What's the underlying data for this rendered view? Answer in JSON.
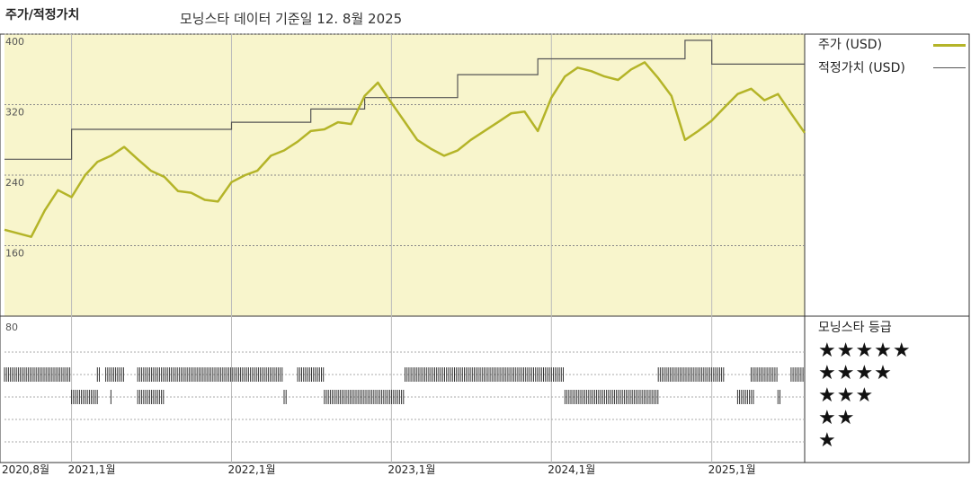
{
  "header": {
    "left_title": "주가/적정가치",
    "center_title": "모닝스타 데이터 기준일 12. 8월 2025"
  },
  "legend": {
    "price_label": "주가 (USD)",
    "fair_value_label": "적정가치 (USD)"
  },
  "colors": {
    "price": "#b4b428",
    "fair_value": "#555555",
    "panel_bg": "#f8f5cc",
    "rating_bar": "#333333"
  },
  "rating_panel": {
    "title": "모닝스타 등급",
    "star_rows": [
      "★★★★★",
      "★★★★",
      "★★★",
      "★★",
      "★"
    ],
    "lower_axis_label": "80"
  },
  "chart_data": {
    "type": "line",
    "x_axis": {
      "start": "2020-08",
      "end": "2025-08",
      "tick_labels": [
        "2020,8월",
        "2021,1월",
        "2022,1월",
        "2023,1월",
        "2024,1월",
        "2025,1월"
      ],
      "tick_dates": [
        "2020-08",
        "2021-01",
        "2022-01",
        "2023-01",
        "2024-01",
        "2025-01"
      ]
    },
    "y_axis": {
      "ylim": [
        80,
        400
      ],
      "tick_labels": [
        "400",
        "320",
        "240",
        "160"
      ],
      "tick_values": [
        400,
        320,
        240,
        160
      ]
    },
    "series": [
      {
        "name": "주가 (USD)",
        "points": [
          [
            "2020-08-01",
            178
          ],
          [
            "2020-09-01",
            174
          ],
          [
            "2020-10-01",
            170
          ],
          [
            "2020-11-01",
            200
          ],
          [
            "2020-12-01",
            223
          ],
          [
            "2021-01-01",
            215
          ],
          [
            "2021-02-01",
            240
          ],
          [
            "2021-03-01",
            255
          ],
          [
            "2021-04-01",
            262
          ],
          [
            "2021-05-01",
            272
          ],
          [
            "2021-06-01",
            258
          ],
          [
            "2021-07-01",
            245
          ],
          [
            "2021-08-01",
            238
          ],
          [
            "2021-09-01",
            222
          ],
          [
            "2021-10-01",
            220
          ],
          [
            "2021-11-01",
            212
          ],
          [
            "2021-12-01",
            210
          ],
          [
            "2022-01-01",
            232
          ],
          [
            "2022-02-01",
            240
          ],
          [
            "2022-03-01",
            245
          ],
          [
            "2022-04-01",
            262
          ],
          [
            "2022-05-01",
            268
          ],
          [
            "2022-06-01",
            278
          ],
          [
            "2022-07-01",
            290
          ],
          [
            "2022-08-01",
            292
          ],
          [
            "2022-09-01",
            300
          ],
          [
            "2022-10-01",
            298
          ],
          [
            "2022-11-01",
            330
          ],
          [
            "2022-12-01",
            345
          ],
          [
            "2023-01-01",
            322
          ],
          [
            "2023-02-01",
            300
          ],
          [
            "2023-03-01",
            280
          ],
          [
            "2023-04-01",
            270
          ],
          [
            "2023-05-01",
            262
          ],
          [
            "2023-06-01",
            268
          ],
          [
            "2023-07-01",
            280
          ],
          [
            "2023-08-01",
            290
          ],
          [
            "2023-09-01",
            300
          ],
          [
            "2023-10-01",
            310
          ],
          [
            "2023-11-01",
            312
          ],
          [
            "2023-12-01",
            290
          ],
          [
            "2024-01-01",
            328
          ],
          [
            "2024-02-01",
            352
          ],
          [
            "2024-03-01",
            362
          ],
          [
            "2024-04-01",
            358
          ],
          [
            "2024-05-01",
            352
          ],
          [
            "2024-06-01",
            348
          ],
          [
            "2024-07-01",
            360
          ],
          [
            "2024-08-01",
            368
          ],
          [
            "2024-09-01",
            350
          ],
          [
            "2024-10-01",
            330
          ],
          [
            "2024-11-01",
            280
          ],
          [
            "2024-12-01",
            290
          ],
          [
            "2025-01-01",
            302
          ],
          [
            "2025-02-01",
            318
          ],
          [
            "2025-03-01",
            332
          ],
          [
            "2025-04-01",
            338
          ],
          [
            "2025-05-01",
            325
          ],
          [
            "2025-06-01",
            332
          ],
          [
            "2025-07-01",
            310
          ],
          [
            "2025-08-01",
            288
          ]
        ]
      },
      {
        "name": "적정가치 (USD)",
        "points": [
          [
            "2020-08-01",
            258
          ],
          [
            "2021-01-01",
            258
          ],
          [
            "2021-01-01",
            292
          ],
          [
            "2022-01-01",
            292
          ],
          [
            "2022-01-01",
            300
          ],
          [
            "2022-07-01",
            300
          ],
          [
            "2022-07-01",
            315
          ],
          [
            "2022-11-01",
            315
          ],
          [
            "2022-11-01",
            328
          ],
          [
            "2023-06-01",
            328
          ],
          [
            "2023-06-01",
            354
          ],
          [
            "2023-12-01",
            354
          ],
          [
            "2023-12-01",
            372
          ],
          [
            "2024-11-01",
            372
          ],
          [
            "2024-11-01",
            393
          ],
          [
            "2025-01-01",
            393
          ],
          [
            "2025-01-01",
            366
          ],
          [
            "2025-08-01",
            366
          ]
        ]
      }
    ],
    "rating_history": {
      "rows": [
        {
          "stars": 4,
          "periods": [
            [
              "2020-08-01",
              "2021-01-01"
            ],
            [
              "2021-03-01",
              "2021-03-10"
            ],
            [
              "2021-03-20",
              "2021-05-01"
            ],
            [
              "2021-06-01",
              "2022-05-01"
            ],
            [
              "2022-06-01",
              "2022-08-01"
            ],
            [
              "2023-02-01",
              "2024-02-01"
            ],
            [
              "2024-09-01",
              "2025-02-01"
            ],
            [
              "2025-04-01",
              "2025-06-01"
            ],
            [
              "2025-07-01",
              "2025-08-01"
            ]
          ]
        },
        {
          "stars": 3,
          "periods": [
            [
              "2021-01-01",
              "2021-03-01"
            ],
            [
              "2021-04-01",
              "2021-04-05"
            ],
            [
              "2021-06-01",
              "2021-08-01"
            ],
            [
              "2022-05-01",
              "2022-05-10"
            ],
            [
              "2022-08-01",
              "2023-02-01"
            ],
            [
              "2024-02-01",
              "2024-09-01"
            ],
            [
              "2025-03-01",
              "2025-04-10"
            ],
            [
              "2025-06-01",
              "2025-06-10"
            ]
          ]
        }
      ]
    }
  }
}
